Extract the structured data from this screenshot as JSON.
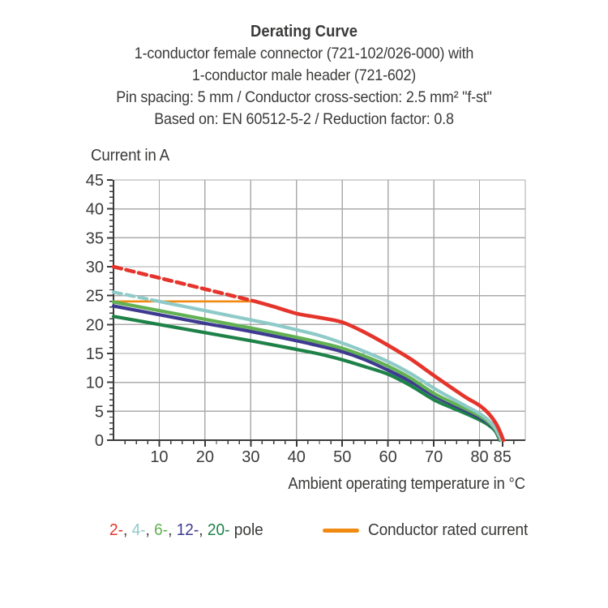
{
  "header": {
    "title": "Derating Curve",
    "subtitle_lines": [
      "1-conductor female connector (721-102/026-000) with",
      "1-conductor male header (721-602)",
      "Pin spacing: 5 mm / Conductor cross-section: 2.5 mm² \"f-st\"",
      "Based on: EN 60512-5-2 / Reduction factor: 0.8"
    ]
  },
  "chart_data": {
    "type": "line",
    "title": "Derating Curve",
    "xlabel": "Ambient operating temperature in °C",
    "ylabel": "Current in A",
    "xlim": [
      0,
      90
    ],
    "ylim": [
      0,
      45
    ],
    "x_major_ticks": [
      10,
      20,
      30,
      40,
      50,
      60,
      70,
      80,
      85
    ],
    "x_minor_step": 2.5,
    "y_major_ticks": [
      0,
      5,
      10,
      15,
      20,
      25,
      30,
      35,
      40,
      45
    ],
    "y_minor_step": 1,
    "grid": {
      "on": true,
      "color": "#ababab",
      "x_lines": [
        10,
        20,
        30,
        40,
        50,
        60,
        70,
        80,
        90
      ],
      "y_lines": [
        5,
        10,
        15,
        20,
        25,
        30,
        35,
        40,
        45
      ]
    },
    "axis_color": "#3b3b3a",
    "legend_position": "bottom",
    "series": [
      {
        "name": "Conductor rated current",
        "color": "#f18a11",
        "width": 2.6,
        "segments": [
          {
            "dash": false,
            "points": [
              [
                0,
                24
              ],
              [
                31,
                24
              ]
            ]
          }
        ]
      },
      {
        "name": "20-pole",
        "color": "#1e8248",
        "width": 4.2,
        "segments": [
          {
            "dash": false,
            "points": [
              [
                0,
                21.4
              ],
              [
                10,
                20.0
              ],
              [
                20,
                18.6
              ],
              [
                30,
                17.2
              ],
              [
                40,
                15.7
              ],
              [
                45,
                14.9
              ],
              [
                50,
                13.9
              ],
              [
                55,
                12.7
              ],
              [
                60,
                11.4
              ],
              [
                65,
                9.4
              ],
              [
                70,
                7.0
              ],
              [
                74,
                5.6
              ],
              [
                77,
                4.6
              ],
              [
                80,
                3.5
              ],
              [
                82,
                2.6
              ],
              [
                83.5,
                1.5
              ],
              [
                84.4,
                0
              ]
            ]
          }
        ]
      },
      {
        "name": "12-pole",
        "color": "#3d3a91",
        "width": 4.2,
        "segments": [
          {
            "dash": false,
            "points": [
              [
                0,
                23.2
              ],
              [
                10,
                21.7
              ],
              [
                20,
                20.2
              ],
              [
                30,
                18.8
              ],
              [
                40,
                17.2
              ],
              [
                45,
                16.3
              ],
              [
                50,
                15.3
              ],
              [
                55,
                13.9
              ],
              [
                60,
                12.1
              ],
              [
                65,
                10.1
              ],
              [
                70,
                7.7
              ],
              [
                74,
                6.2
              ],
              [
                77,
                5.1
              ],
              [
                80,
                3.9
              ],
              [
                82,
                2.9
              ],
              [
                83.5,
                1.7
              ],
              [
                84.5,
                0
              ]
            ]
          }
        ]
      },
      {
        "name": "6-pole",
        "color": "#62b152",
        "width": 4.2,
        "segments": [
          {
            "dash": false,
            "points": [
              [
                0,
                23.9
              ],
              [
                10,
                22.4
              ],
              [
                20,
                20.9
              ],
              [
                30,
                19.4
              ],
              [
                40,
                17.8
              ],
              [
                45,
                16.9
              ],
              [
                50,
                15.9
              ],
              [
                55,
                14.5
              ],
              [
                60,
                12.8
              ],
              [
                65,
                10.7
              ],
              [
                70,
                8.1
              ],
              [
                74,
                6.5
              ],
              [
                77,
                5.4
              ],
              [
                80,
                4.2
              ],
              [
                82,
                3.1
              ],
              [
                83.5,
                1.8
              ],
              [
                84.6,
                0
              ]
            ]
          }
        ]
      },
      {
        "name": "4-pole",
        "color": "#8ecac8",
        "width": 4.2,
        "segments": [
          {
            "dash": true,
            "points": [
              [
                0,
                25.6
              ],
              [
                10,
                24.0
              ]
            ]
          },
          {
            "dash": false,
            "points": [
              [
                10,
                24.0
              ],
              [
                15,
                23.2
              ],
              [
                20,
                22.4
              ],
              [
                25,
                21.6
              ],
              [
                30,
                20.8
              ],
              [
                35,
                20.0
              ],
              [
                40,
                19.1
              ],
              [
                45,
                18.1
              ],
              [
                50,
                16.8
              ],
              [
                55,
                15.3
              ],
              [
                60,
                13.6
              ],
              [
                65,
                11.5
              ],
              [
                70,
                9.0
              ],
              [
                74,
                7.2
              ],
              [
                77,
                5.9
              ],
              [
                80,
                4.6
              ],
              [
                82,
                3.4
              ],
              [
                83.5,
                2.0
              ],
              [
                84.8,
                0
              ]
            ]
          }
        ]
      },
      {
        "name": "2-pole",
        "color": "#e5342b",
        "width": 4.6,
        "segments": [
          {
            "dash": true,
            "points": [
              [
                0,
                30
              ],
              [
                31,
                24
              ]
            ]
          },
          {
            "dash": false,
            "points": [
              [
                31,
                24
              ],
              [
                35,
                23.1
              ],
              [
                40,
                21.9
              ],
              [
                45,
                21.2
              ],
              [
                50,
                20.4
              ],
              [
                55,
                18.6
              ],
              [
                60,
                16.4
              ],
              [
                65,
                14.0
              ],
              [
                70,
                11.2
              ],
              [
                74,
                9.0
              ],
              [
                77,
                7.4
              ],
              [
                80,
                6.0
              ],
              [
                82,
                4.6
              ],
              [
                83.5,
                3.0
              ],
              [
                84.5,
                1.4
              ],
              [
                85.2,
                0
              ]
            ]
          }
        ]
      }
    ]
  },
  "legend": {
    "pole_items": [
      {
        "label": "2-",
        "color": "#e5342b"
      },
      {
        "label": "4-",
        "color": "#8ecac8"
      },
      {
        "label": "6-",
        "color": "#62b152"
      },
      {
        "label": "12-",
        "color": "#3d3a91"
      },
      {
        "label": "20-",
        "color": "#1e8248"
      }
    ],
    "separator": ", ",
    "suffix": " pole",
    "rated": {
      "label": "Conductor rated current",
      "color": "#f18a11"
    }
  }
}
